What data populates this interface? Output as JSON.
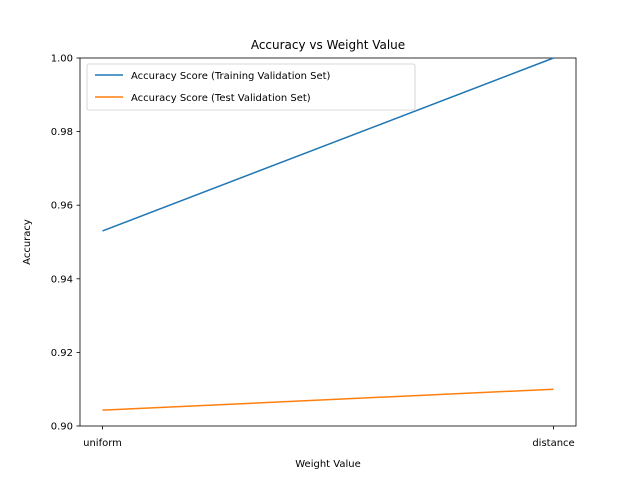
{
  "chart_data": {
    "type": "line",
    "title": "Accuracy vs Weight Value",
    "xlabel": "Weight Value",
    "ylabel": "Accuracy",
    "categories": [
      "uniform",
      "distance"
    ],
    "ylim": [
      0.9,
      1.0
    ],
    "yticks": [
      "0.90",
      "0.92",
      "0.94",
      "0.96",
      "0.98",
      "1.00"
    ],
    "grid": false,
    "legend_position": "top-left",
    "series": [
      {
        "name": "Accuracy Score (Training Validation Set)",
        "values": [
          0.953,
          1.0
        ],
        "color": "#1f77b4"
      },
      {
        "name": "Accuracy Score (Test Validation Set)",
        "values": [
          0.9043,
          0.91
        ],
        "color": "#ff7f0e"
      }
    ]
  }
}
